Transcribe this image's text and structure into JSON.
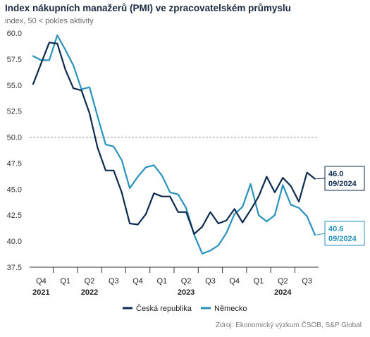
{
  "title": "Index nákupních manažerů (PMI) ve zpracovatelském průmyslu",
  "subtitle": "index, 50 < pokles aktivity",
  "source": "Zdroj: Ekonomický výzkum ČSOB, S&P Global",
  "colors": {
    "cz": "#0d2a4f",
    "de": "#2793bd",
    "threshold": "#8a8a8a",
    "axis": "#333333"
  },
  "chart_data": {
    "type": "line",
    "ylim": [
      37.5,
      60.0
    ],
    "yticks": [
      37.5,
      40.0,
      42.5,
      45.0,
      47.5,
      50.0,
      52.5,
      55.0,
      57.5,
      60.0
    ],
    "threshold": 50.0,
    "x": [
      "2021-10",
      "2021-11",
      "2021-12",
      "2022-01",
      "2022-02",
      "2022-03",
      "2022-04",
      "2022-05",
      "2022-06",
      "2022-07",
      "2022-08",
      "2022-09",
      "2022-10",
      "2022-11",
      "2022-12",
      "2023-01",
      "2023-02",
      "2023-03",
      "2023-04",
      "2023-05",
      "2023-06",
      "2023-07",
      "2023-08",
      "2023-09",
      "2023-10",
      "2023-11",
      "2023-12",
      "2024-01",
      "2024-02",
      "2024-03",
      "2024-04",
      "2024-05",
      "2024-06",
      "2024-07",
      "2024-08",
      "2024-09"
    ],
    "quarter_labels": [
      {
        "label": "Q4",
        "months": [
          "2021-10",
          "2021-12"
        ]
      },
      {
        "label": "Q1",
        "months": [
          "2022-01",
          "2022-03"
        ]
      },
      {
        "label": "Q2",
        "months": [
          "2022-04",
          "2022-06"
        ]
      },
      {
        "label": "Q3",
        "months": [
          "2022-07",
          "2022-09"
        ]
      },
      {
        "label": "Q4",
        "months": [
          "2022-10",
          "2022-12"
        ]
      },
      {
        "label": "Q1",
        "months": [
          "2023-01",
          "2023-03"
        ]
      },
      {
        "label": "Q2",
        "months": [
          "2023-04",
          "2023-06"
        ]
      },
      {
        "label": "Q3",
        "months": [
          "2023-07",
          "2023-09"
        ]
      },
      {
        "label": "Q4",
        "months": [
          "2023-10",
          "2023-12"
        ]
      },
      {
        "label": "Q1",
        "months": [
          "2024-01",
          "2024-03"
        ]
      },
      {
        "label": "Q2",
        "months": [
          "2024-04",
          "2024-06"
        ]
      },
      {
        "label": "Q3",
        "months": [
          "2024-07",
          "2024-09"
        ]
      }
    ],
    "year_labels": [
      {
        "label": "2021",
        "month": "2021-11"
      },
      {
        "label": "2022",
        "month": "2022-05"
      },
      {
        "label": "2023",
        "month": "2023-05"
      },
      {
        "label": "2024",
        "month": "2024-05"
      }
    ],
    "series": [
      {
        "name": "Česká republika",
        "color": "#0d2a4f",
        "values": [
          55.1,
          57.1,
          59.1,
          59.0,
          56.5,
          54.7,
          54.5,
          52.3,
          49.0,
          46.8,
          46.8,
          44.7,
          41.7,
          41.6,
          42.6,
          44.6,
          44.3,
          44.3,
          42.8,
          42.8,
          40.7,
          41.4,
          42.8,
          41.7,
          42.0,
          43.1,
          41.8,
          43.0,
          44.3,
          46.2,
          44.7,
          46.1,
          45.3,
          43.8,
          46.6,
          46.0
        ],
        "end_label": {
          "value": "46.0",
          "date": "09/2024"
        }
      },
      {
        "name": "Německo",
        "color": "#2793bd",
        "values": [
          57.8,
          57.4,
          57.4,
          59.8,
          58.4,
          56.9,
          54.6,
          54.8,
          52.0,
          49.3,
          49.1,
          47.8,
          45.1,
          46.2,
          47.1,
          47.3,
          46.3,
          44.7,
          44.5,
          43.2,
          40.6,
          38.8,
          39.1,
          39.6,
          40.8,
          42.6,
          43.3,
          45.5,
          42.5,
          41.9,
          42.5,
          45.4,
          43.5,
          43.2,
          42.4,
          40.6
        ],
        "end_label": {
          "value": "40.6",
          "date": "09/2024"
        }
      }
    ],
    "legend_position": "bottom-center",
    "grid": false
  }
}
